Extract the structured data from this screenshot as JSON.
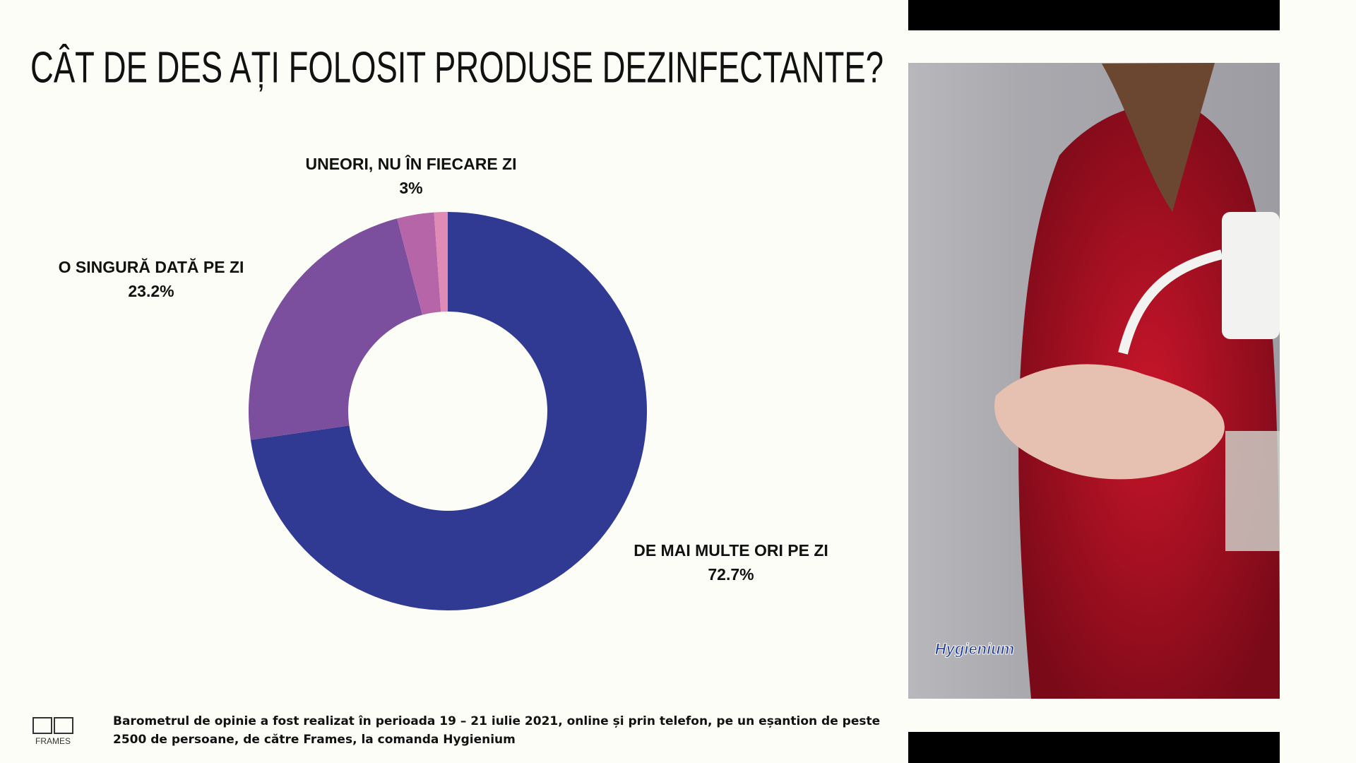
{
  "title": "CÂT DE DES AȚI FOLOSIT PRODUSE DEZINFECTANTE?",
  "chart_data": {
    "type": "donut",
    "categories": [
      "DE MAI MULTE ORI PE ZI",
      "O SINGURĂ DATĂ PE ZI",
      "UNEORI, NU ÎN FIECARE ZI",
      null
    ],
    "values": [
      72.7,
      23.2,
      3,
      1.1
    ],
    "value_labels": [
      "72.7%",
      "23.2%",
      "3%",
      null
    ],
    "colors": [
      "#303a93",
      "#7b4f9e",
      "#b565a8",
      "#e08bb5"
    ]
  },
  "photo": {
    "logo": "Hygienium"
  },
  "footer": {
    "text": "Barometrul de opinie a fost realizat în perioada 19 – 21 iulie 2021, online și prin telefon, pe un eșantion de peste 2500 de persoane, de către Frames, la comanda Hygienium",
    "logo": "FRAMES"
  }
}
